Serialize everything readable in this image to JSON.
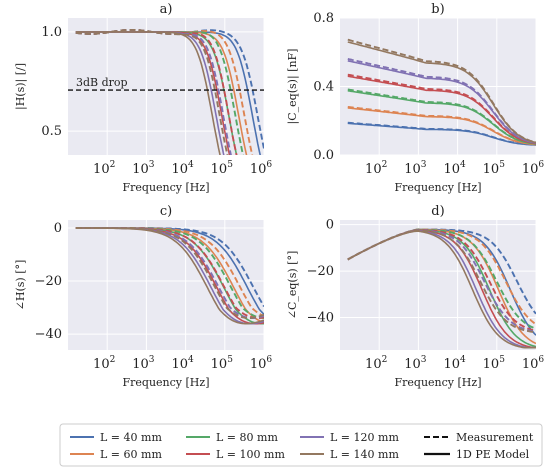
{
  "colors": {
    "L40": "#4c72b0",
    "L60": "#dd8452",
    "L80": "#55a868",
    "L100": "#c44e52",
    "L120": "#8172b3",
    "L140": "#937860",
    "background": "#eaeaf2",
    "grid": "#ffffff"
  },
  "legend": {
    "series": [
      "L = 40 mm",
      "L = 60 mm",
      "L = 80 mm",
      "L = 100 mm",
      "L = 120 mm",
      "L = 140 mm"
    ],
    "styles": [
      "Measurement",
      "1D PE Model"
    ]
  },
  "chart_data": [
    {
      "id": "a",
      "title": "a)",
      "type": "line",
      "xlabel": "Frequency [Hz]",
      "ylabel": "|H(s)| [/]",
      "xscale": "log",
      "xlim": [
        10,
        1000000
      ],
      "ylim": [
        0.38,
        1.07
      ],
      "xticks": [
        2,
        3,
        4,
        5,
        6
      ],
      "yticks": [
        0.5,
        1.0
      ],
      "ytick_labels": [
        "0.5",
        "1.0"
      ],
      "annotations": [
        {
          "text": "3dB drop",
          "y": 0.707
        }
      ],
      "series": [
        {
          "name": "L = 40 mm",
          "model_fc": 380000,
          "meas_fc": 520000
        },
        {
          "name": "L = 60 mm",
          "model_fc": 170000,
          "meas_fc": 240000
        },
        {
          "name": "L = 80 mm",
          "model_fc": 95000,
          "meas_fc": 140000
        },
        {
          "name": "L = 100 mm",
          "model_fc": 63000,
          "meas_fc": 95000
        },
        {
          "name": "L = 120 mm",
          "model_fc": 45000,
          "meas_fc": 68000
        },
        {
          "name": "L = 140 mm",
          "model_fc": 36000,
          "meas_fc": 55000
        }
      ]
    },
    {
      "id": "b",
      "title": "b)",
      "type": "line",
      "xlabel": "Frequency [Hz]",
      "ylabel": "|C_eq(s)| [nF]",
      "xscale": "log",
      "xlim": [
        10,
        1000000
      ],
      "ylim": [
        0,
        0.8
      ],
      "xticks": [
        2,
        3,
        4,
        5,
        6
      ],
      "yticks": [
        0.0,
        0.4,
        0.8
      ],
      "ytick_labels": [
        "0.0",
        "0.4",
        "0.8"
      ],
      "series": [
        {
          "name": "L = 40 mm",
          "plateau": 0.15,
          "low_bump": 0.035
        },
        {
          "name": "L = 60 mm",
          "plateau": 0.225,
          "low_bump": 0.05
        },
        {
          "name": "L = 80 mm",
          "plateau": 0.305,
          "low_bump": 0.07
        },
        {
          "name": "L = 100 mm",
          "plateau": 0.38,
          "low_bump": 0.08
        },
        {
          "name": "L = 120 mm",
          "plateau": 0.45,
          "low_bump": 0.1
        },
        {
          "name": "L = 140 mm",
          "plateau": 0.54,
          "low_bump": 0.12
        }
      ],
      "high_freq_end": 0.055
    },
    {
      "id": "c",
      "title": "c)",
      "type": "line",
      "xlabel": "Frequency [Hz]",
      "ylabel": "∠H(s) [°]",
      "xscale": "log",
      "xlim": [
        10,
        1000000
      ],
      "ylim": [
        -46,
        3
      ],
      "xticks": [
        2,
        3,
        4,
        5,
        6
      ],
      "yticks": [
        0,
        -20,
        -40
      ],
      "ytick_labels": [
        "0",
        "−20",
        "−40"
      ],
      "series": [
        {
          "name": "L = 40 mm",
          "model_fc": 380000,
          "meas_fc": 520000
        },
        {
          "name": "L = 60 mm",
          "model_fc": 170000,
          "meas_fc": 240000
        },
        {
          "name": "L = 80 mm",
          "model_fc": 95000,
          "meas_fc": 140000
        },
        {
          "name": "L = 100 mm",
          "model_fc": 63000,
          "meas_fc": 95000
        },
        {
          "name": "L = 120 mm",
          "model_fc": 45000,
          "meas_fc": 68000
        },
        {
          "name": "L = 140 mm",
          "model_fc": 36000,
          "meas_fc": 55000
        }
      ]
    },
    {
      "id": "d",
      "title": "d)",
      "type": "line",
      "xlabel": "Frequency [Hz]",
      "ylabel": "∠C_eq(s) [°]",
      "xscale": "log",
      "xlim": [
        10,
        1000000
      ],
      "ylim": [
        -54,
        2
      ],
      "xticks": [
        2,
        3,
        4,
        5,
        6
      ],
      "yticks": [
        0,
        -20,
        -40
      ],
      "ytick_labels": [
        "0",
        "−20",
        "−40"
      ],
      "series": [
        {
          "name": "L = 40 mm",
          "model_fc": 220000,
          "meas_fc": 330000
        },
        {
          "name": "L = 60 mm",
          "model_fc": 110000,
          "meas_fc": 170000
        },
        {
          "name": "L = 80 mm",
          "model_fc": 65000,
          "meas_fc": 100000
        },
        {
          "name": "L = 100 mm",
          "model_fc": 42000,
          "meas_fc": 65000
        },
        {
          "name": "L = 120 mm",
          "model_fc": 30000,
          "meas_fc": 48000
        },
        {
          "name": "L = 140 mm",
          "model_fc": 24000,
          "meas_fc": 38000
        }
      ]
    }
  ]
}
